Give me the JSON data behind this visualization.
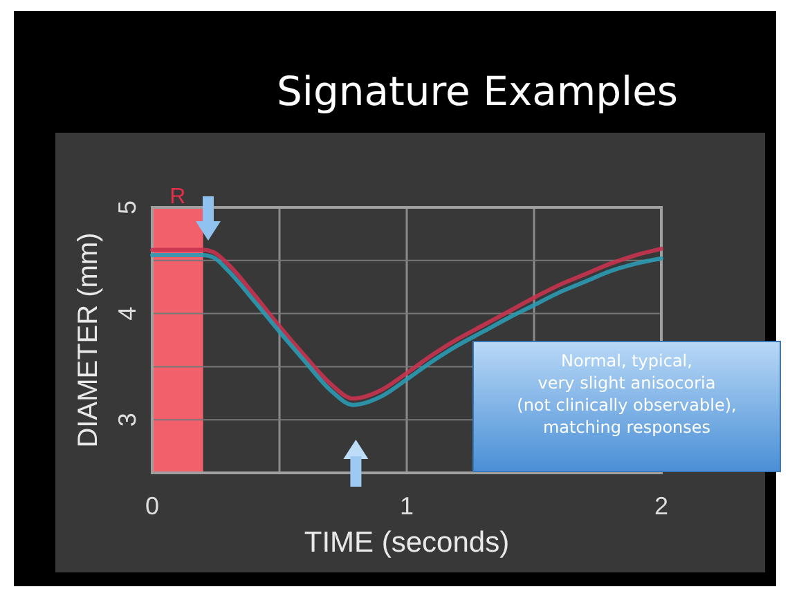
{
  "chart_data": {
    "type": "line",
    "title": "Signature Examples",
    "xlabel": "TIME (seconds)",
    "ylabel": "DIAMETER (mm)",
    "xlim": [
      0,
      2
    ],
    "xticks": [
      0,
      {
        "value": 0.5,
        "label": null
      },
      1,
      {
        "value": 1.5,
        "label": null
      },
      2
    ],
    "ylim": [
      2.5,
      5
    ],
    "yticks": [
      3,
      {
        "value": 3.5,
        "label": null
      },
      4,
      {
        "value": 4.5,
        "label": null
      },
      5
    ],
    "grid": true,
    "marker": "none",
    "line_style": "solid",
    "bands": [
      {
        "axis": "x",
        "from": 0,
        "to": 0.2,
        "label": "R",
        "color": "#f2606c"
      }
    ],
    "annotations": [
      "Normal, typical,\nvery slight anisocoria\n(not clinically observable),\nmatching responses"
    ],
    "series": [
      {
        "color": "#c8334f",
        "x": [
          0,
          0.2,
          0.24,
          0.3,
          0.4,
          0.5,
          0.6,
          0.7,
          0.79,
          0.9,
          1.0,
          1.1,
          1.2,
          1.3,
          1.4,
          1.5,
          1.6,
          1.7,
          1.8,
          1.9,
          2.0
        ],
        "values": [
          4.6,
          4.6,
          4.58,
          4.46,
          4.18,
          3.88,
          3.6,
          3.34,
          3.2,
          3.28,
          3.44,
          3.61,
          3.76,
          3.89,
          4.02,
          4.15,
          4.27,
          4.37,
          4.47,
          4.55,
          4.61
        ]
      },
      {
        "color": "#2b9bb3",
        "x": [
          0,
          0.2,
          0.24,
          0.3,
          0.4,
          0.5,
          0.6,
          0.7,
          0.79,
          0.9,
          1.0,
          1.1,
          1.2,
          1.3,
          1.4,
          1.5,
          1.6,
          1.7,
          1.8,
          1.9,
          2.0
        ],
        "values": [
          4.55,
          4.55,
          4.53,
          4.4,
          4.12,
          3.83,
          3.55,
          3.28,
          3.14,
          3.22,
          3.38,
          3.55,
          3.7,
          3.83,
          3.96,
          4.08,
          4.2,
          4.3,
          4.4,
          4.47,
          4.52
        ]
      }
    ]
  }
}
